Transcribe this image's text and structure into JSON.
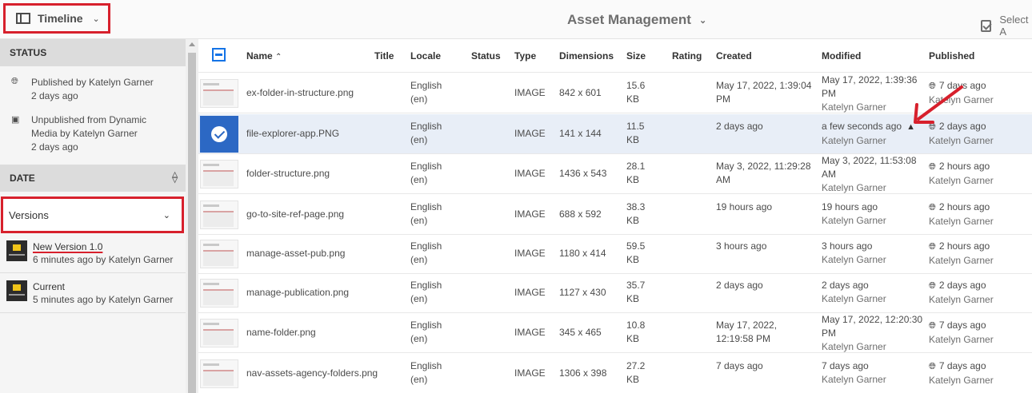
{
  "topbar": {
    "rail_label": "Timeline",
    "app_title": "Asset Management",
    "select_all": "Select A"
  },
  "left": {
    "status_header": "STATUS",
    "status_items": [
      {
        "icon": "globe-icon",
        "text": "Published by Katelyn Garner",
        "time": "2 days ago"
      },
      {
        "icon": "unpublish-icon",
        "text": "Unpublished from Dynamic Media by Katelyn Garner",
        "time": "2 days ago"
      }
    ],
    "date_header": "DATE",
    "versions_label": "Versions",
    "versions": [
      {
        "title": "New Version 1.0",
        "meta": "6 minutes ago by Katelyn Garner"
      },
      {
        "title": "Current",
        "meta": "5 minutes ago by Katelyn Garner"
      }
    ]
  },
  "table": {
    "headers": {
      "name": "Name",
      "title": "Title",
      "locale": "Locale",
      "status": "Status",
      "type": "Type",
      "dimensions": "Dimensions",
      "size": "Size",
      "rating": "Rating",
      "created": "Created",
      "modified": "Modified",
      "published": "Published"
    },
    "rows": [
      {
        "name": "ex-folder-in-structure.png",
        "locale": "English (en)",
        "type": "IMAGE",
        "dimensions": "842 x 601",
        "size": "15.6 KB",
        "created": "May 17, 2022, 1:39:04 PM",
        "modified": "May 17, 2022, 1:39:36 PM",
        "modified_by": "Katelyn Garner",
        "published": "7 days ago",
        "published_by": "Katelyn Garner"
      },
      {
        "name": "file-explorer-app.PNG",
        "locale": "English (en)",
        "type": "IMAGE",
        "dimensions": "141 x 144",
        "size": "11.5 KB",
        "created": "2 days ago",
        "modified": "a few seconds ago",
        "modified_by": "Katelyn Garner",
        "published": "2 days ago",
        "published_by": "Katelyn Garner"
      },
      {
        "name": "folder-structure.png",
        "locale": "English (en)",
        "type": "IMAGE",
        "dimensions": "1436 x 543",
        "size": "28.1 KB",
        "created": "May 3, 2022, 11:29:28 AM",
        "modified": "May 3, 2022, 11:53:08 AM",
        "modified_by": "Katelyn Garner",
        "published": "2 hours ago",
        "published_by": "Katelyn Garner"
      },
      {
        "name": "go-to-site-ref-page.png",
        "locale": "English (en)",
        "type": "IMAGE",
        "dimensions": "688 x 592",
        "size": "38.3 KB",
        "created": "19 hours ago",
        "modified": "19 hours ago",
        "modified_by": "Katelyn Garner",
        "published": "2 hours ago",
        "published_by": "Katelyn Garner"
      },
      {
        "name": "manage-asset-pub.png",
        "locale": "English (en)",
        "type": "IMAGE",
        "dimensions": "1180 x 414",
        "size": "59.5 KB",
        "created": "3 hours ago",
        "modified": "3 hours ago",
        "modified_by": "Katelyn Garner",
        "published": "2 hours ago",
        "published_by": "Katelyn Garner"
      },
      {
        "name": "manage-publication.png",
        "locale": "English (en)",
        "type": "IMAGE",
        "dimensions": "1127 x 430",
        "size": "35.7 KB",
        "created": "2 days ago",
        "modified": "2 days ago",
        "modified_by": "Katelyn Garner",
        "published": "2 days ago",
        "published_by": "Katelyn Garner"
      },
      {
        "name": "name-folder.png",
        "locale": "English (en)",
        "type": "IMAGE",
        "dimensions": "345 x 465",
        "size": "10.8 KB",
        "created": "May 17, 2022, 12:19:58 PM",
        "modified": "May 17, 2022, 12:20:30 PM",
        "modified_by": "Katelyn Garner",
        "published": "7 days ago",
        "published_by": "Katelyn Garner"
      },
      {
        "name": "nav-assets-agency-folders.png",
        "locale": "English (en)",
        "type": "IMAGE",
        "dimensions": "1306 x 398",
        "size": "27.2 KB",
        "created": "7 days ago",
        "modified": "7 days ago",
        "modified_by": "Katelyn Garner",
        "published": "7 days ago",
        "published_by": "Katelyn Garner"
      }
    ]
  },
  "colors": {
    "highlight": "#d7202c",
    "selection": "#2c68c4",
    "checkbox": "#1473e6"
  }
}
